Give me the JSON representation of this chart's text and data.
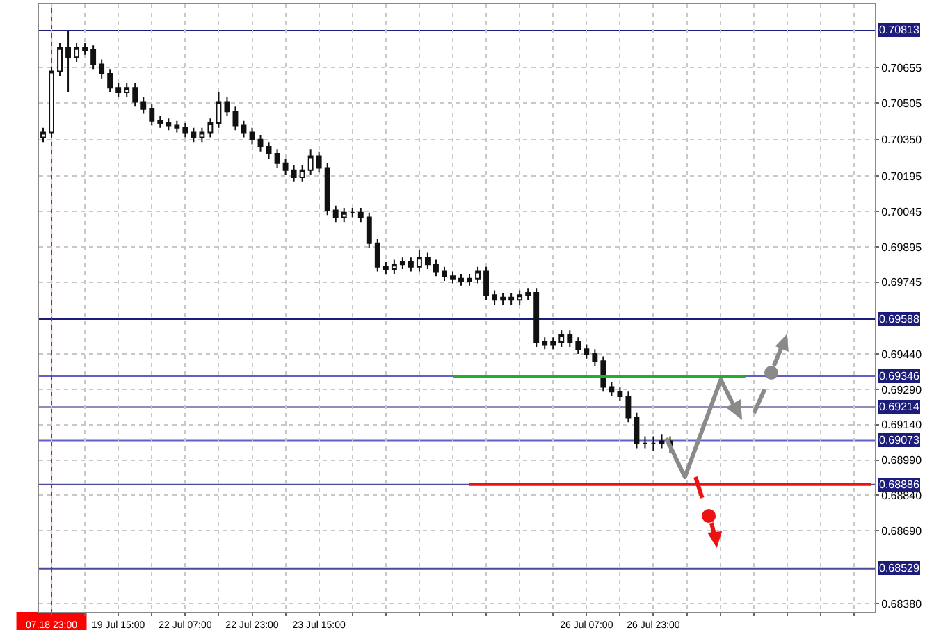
{
  "chart_data": {
    "type": "candlestick",
    "categories": [
      null,
      "07.18 23:00",
      null,
      null,
      null,
      null,
      null,
      null,
      null,
      "19 Jul 15:00",
      null,
      null,
      null,
      null,
      null,
      null,
      null,
      "22 Jul 07:00",
      null,
      null,
      null,
      null,
      null,
      null,
      null,
      "22 Jul 23:00",
      null,
      null,
      null,
      null,
      null,
      null,
      null,
      "23 Jul 15:00",
      null,
      null,
      null,
      null,
      null,
      null,
      null,
      null,
      null,
      null,
      null,
      null,
      null,
      null,
      null,
      null,
      null,
      null,
      null,
      null,
      null,
      null,
      null,
      null,
      null,
      null,
      null,
      null,
      null,
      null,
      null,
      "26 Jul 07:00",
      null,
      null,
      null,
      null,
      null,
      null,
      null,
      "26 Jul 23:00",
      null,
      null,
      null,
      null,
      null,
      null,
      null,
      null,
      null,
      null,
      null,
      null,
      null,
      null,
      null,
      null,
      null,
      null,
      null,
      null,
      null,
      null,
      null,
      null,
      null,
      null
    ],
    "ohlc": [
      [
        0.7036,
        0.704,
        0.7034,
        0.7038
      ],
      [
        0.7038,
        0.7066,
        0.7036,
        0.7064
      ],
      [
        0.7064,
        0.7076,
        0.7062,
        0.7074
      ],
      [
        0.7074,
        0.7081,
        0.7055,
        0.707
      ],
      [
        0.707,
        0.7076,
        0.7068,
        0.7074
      ],
      [
        0.7074,
        0.7076,
        0.7071,
        0.7073
      ],
      [
        0.7073,
        0.7075,
        0.7065,
        0.7067
      ],
      [
        0.7067,
        0.7069,
        0.7061,
        0.7063
      ],
      [
        0.7063,
        0.7065,
        0.7055,
        0.7057
      ],
      [
        0.7057,
        0.7059,
        0.7053,
        0.7055
      ],
      [
        0.7055,
        0.7059,
        0.7053,
        0.7057
      ],
      [
        0.7057,
        0.7059,
        0.7049,
        0.7051
      ],
      [
        0.7051,
        0.7053,
        0.7046,
        0.7048
      ],
      [
        0.7048,
        0.705,
        0.7041,
        0.7043
      ],
      [
        0.7043,
        0.7045,
        0.704,
        0.7042
      ],
      [
        0.7042,
        0.7044,
        0.7039,
        0.7041
      ],
      [
        0.7041,
        0.7043,
        0.7038,
        0.704
      ],
      [
        0.704,
        0.7042,
        0.7036,
        0.7038
      ],
      [
        0.7038,
        0.704,
        0.7034,
        0.7036
      ],
      [
        0.7036,
        0.704,
        0.7034,
        0.7038
      ],
      [
        0.7038,
        0.7044,
        0.7036,
        0.7042
      ],
      [
        0.7042,
        0.7055,
        0.704,
        0.7051
      ],
      [
        0.7051,
        0.7053,
        0.7045,
        0.7047
      ],
      [
        0.7047,
        0.7049,
        0.7039,
        0.7041
      ],
      [
        0.7041,
        0.7043,
        0.7036,
        0.7038
      ],
      [
        0.7038,
        0.704,
        0.7033,
        0.7035
      ],
      [
        0.7035,
        0.7037,
        0.703,
        0.7032
      ],
      [
        0.7032,
        0.7034,
        0.7027,
        0.7029
      ],
      [
        0.7029,
        0.7031,
        0.7023,
        0.7025
      ],
      [
        0.7025,
        0.7027,
        0.702,
        0.7022
      ],
      [
        0.7022,
        0.7024,
        0.7017,
        0.7019
      ],
      [
        0.7019,
        0.7024,
        0.7017,
        0.7022
      ],
      [
        0.7022,
        0.7031,
        0.702,
        0.7028
      ],
      [
        0.7028,
        0.703,
        0.7021,
        0.7023
      ],
      [
        0.7023,
        0.7025,
        0.7003,
        0.7005
      ],
      [
        0.7005,
        0.7007,
        0.7,
        0.7002
      ],
      [
        0.7002,
        0.7006,
        0.7,
        0.7004
      ],
      [
        0.7004,
        0.7006,
        0.7002,
        0.7004
      ],
      [
        0.7004,
        0.7006,
        0.7,
        0.7002
      ],
      [
        0.7002,
        0.7004,
        0.6989,
        0.6991
      ],
      [
        0.6991,
        0.6993,
        0.6979,
        0.6981
      ],
      [
        0.6981,
        0.6983,
        0.6978,
        0.698
      ],
      [
        0.698,
        0.6984,
        0.6978,
        0.6982
      ],
      [
        0.6982,
        0.6985,
        0.698,
        0.6983
      ],
      [
        0.6983,
        0.6985,
        0.6979,
        0.6981
      ],
      [
        0.6981,
        0.6988,
        0.6979,
        0.6985
      ],
      [
        0.6985,
        0.6987,
        0.698,
        0.6982
      ],
      [
        0.6982,
        0.6984,
        0.6977,
        0.6979
      ],
      [
        0.6979,
        0.6981,
        0.6975,
        0.6977
      ],
      [
        0.6977,
        0.6979,
        0.6974,
        0.6976
      ],
      [
        0.6976,
        0.6978,
        0.6973,
        0.6975
      ],
      [
        0.6975,
        0.6978,
        0.6973,
        0.6976
      ],
      [
        0.6976,
        0.6981,
        0.6974,
        0.6979
      ],
      [
        0.6979,
        0.6981,
        0.6967,
        0.6969
      ],
      [
        0.6969,
        0.6971,
        0.6965,
        0.6967
      ],
      [
        0.6967,
        0.697,
        0.6965,
        0.6968
      ],
      [
        0.6968,
        0.697,
        0.6965,
        0.6967
      ],
      [
        0.6967,
        0.6971,
        0.6965,
        0.6969
      ],
      [
        0.6969,
        0.6972,
        0.6967,
        0.697
      ],
      [
        0.697,
        0.6972,
        0.6947,
        0.6949
      ],
      [
        0.6949,
        0.6951,
        0.6946,
        0.6948
      ],
      [
        0.6948,
        0.6951,
        0.6946,
        0.6949
      ],
      [
        0.6949,
        0.6954,
        0.6947,
        0.6952
      ],
      [
        0.6952,
        0.6954,
        0.6947,
        0.6949
      ],
      [
        0.6949,
        0.6951,
        0.6944,
        0.6946
      ],
      [
        0.6946,
        0.6948,
        0.6942,
        0.6944
      ],
      [
        0.6944,
        0.6946,
        0.6939,
        0.6941
      ],
      [
        0.6941,
        0.6943,
        0.6928,
        0.693
      ],
      [
        0.693,
        0.6932,
        0.6926,
        0.6928
      ],
      [
        0.6928,
        0.693,
        0.6924,
        0.6926
      ],
      [
        0.6926,
        0.6928,
        0.6915,
        0.6917
      ],
      [
        0.6917,
        0.6919,
        0.6904,
        0.6906
      ],
      [
        0.6906,
        0.6909,
        0.6904,
        0.6906
      ],
      [
        0.6906,
        0.6909,
        0.6903,
        0.6906
      ],
      [
        0.6906,
        0.691,
        0.6904,
        0.6907
      ],
      [
        0.6907,
        0.6909,
        0.6902,
        0.6905
      ],
      null,
      null,
      null,
      null,
      null,
      null,
      null,
      null,
      null,
      null,
      null,
      null,
      null,
      null,
      null,
      null,
      null,
      null,
      null,
      null,
      null,
      null,
      null,
      null
    ],
    "series": [
      {
        "type": "line",
        "color": "#22b02a",
        "values": [
          null,
          null,
          null,
          null,
          null,
          null,
          null,
          null,
          null,
          null,
          null,
          null,
          null,
          null,
          null,
          null,
          null,
          null,
          null,
          null,
          null,
          null,
          null,
          null,
          null,
          null,
          null,
          null,
          null,
          null,
          null,
          null,
          null,
          null,
          null,
          null,
          null,
          null,
          null,
          null,
          null,
          null,
          null,
          null,
          null,
          null,
          null,
          null,
          null,
          0.69346,
          0.69346,
          0.69346,
          0.69346,
          0.69346,
          0.69346,
          0.69346,
          0.69346,
          0.69346,
          0.69346,
          0.69346,
          0.69346,
          0.69346,
          0.69346,
          0.69346,
          0.69346,
          0.69346,
          0.69346,
          0.69346,
          0.69346,
          0.69346,
          0.69346,
          0.69346,
          0.69346,
          0.69346,
          0.69346,
          0.69346,
          0.69346,
          0.69346,
          0.69346,
          0.69346,
          0.69346,
          0.69346,
          0.69346,
          0.69346,
          0.69346,
          null,
          null,
          null,
          null,
          null,
          null,
          null,
          null,
          null,
          null,
          null,
          null,
          null,
          null,
          null
        ]
      },
      {
        "type": "line",
        "color": "#ee1111",
        "values": [
          null,
          null,
          null,
          null,
          null,
          null,
          null,
          null,
          null,
          null,
          null,
          null,
          null,
          null,
          null,
          null,
          null,
          null,
          null,
          null,
          null,
          null,
          null,
          null,
          null,
          null,
          null,
          null,
          null,
          null,
          null,
          null,
          null,
          null,
          null,
          null,
          null,
          null,
          null,
          null,
          null,
          null,
          null,
          null,
          null,
          null,
          null,
          null,
          null,
          null,
          null,
          0.68886,
          0.68886,
          0.68886,
          0.68886,
          0.68886,
          0.68886,
          0.68886,
          0.68886,
          0.68886,
          0.68886,
          0.68886,
          0.68886,
          0.68886,
          0.68886,
          0.68886,
          0.68886,
          0.68886,
          0.68886,
          0.68886,
          0.68886,
          0.68886,
          0.68886,
          0.68886,
          0.68886,
          0.68886,
          0.68886,
          0.68886,
          0.68886,
          0.68886,
          0.68886,
          0.68886,
          0.68886,
          0.68886,
          0.68886,
          0.68886,
          0.68886,
          0.68886,
          0.68886,
          0.68886,
          0.68886,
          0.68886,
          0.68886,
          0.68886,
          0.68886,
          0.68886,
          0.68886,
          0.68886,
          0.68886,
          0.68886
        ]
      }
    ],
    "ylim": [
      0.68345,
      0.70925
    ],
    "yticks": [
      {
        "value": 0.70655,
        "label": "0.70655"
      },
      {
        "value": 0.70505,
        "label": "0.70505"
      },
      {
        "value": 0.7035,
        "label": "0.70350"
      },
      {
        "value": 0.70195,
        "label": "0.70195"
      },
      {
        "value": 0.70045,
        "label": "0.70045"
      },
      {
        "value": 0.69895,
        "label": "0.69895"
      },
      {
        "value": 0.69745,
        "label": "0.69745"
      },
      {
        "value": 0.6944,
        "label": "0.69440"
      },
      {
        "value": 0.6929,
        "label": "0.69290"
      },
      {
        "value": 0.6914,
        "label": "0.69140"
      },
      {
        "value": 0.6899,
        "label": "0.68990"
      },
      {
        "value": 0.6884,
        "label": "0.68840"
      },
      {
        "value": 0.6869,
        "label": "0.68690"
      },
      {
        "value": 0.6838,
        "label": "0.68380"
      }
    ],
    "ref_lines": [
      {
        "axis": "y",
        "value": 0.70813,
        "label": "0.70813",
        "color": "#1c1c7a"
      },
      {
        "axis": "y",
        "value": 0.69588,
        "label": "0.69588",
        "color": "#1c1c7a"
      },
      {
        "axis": "y",
        "value": 0.69346,
        "label": "0.69346",
        "color": "#6060c8"
      },
      {
        "axis": "y",
        "value": 0.69214,
        "label": "0.69214",
        "color": "#1c1c7a"
      },
      {
        "axis": "y",
        "value": 0.69073,
        "label": "0.69073",
        "color": "#6060c8"
      },
      {
        "axis": "y",
        "value": 0.68886,
        "label": "0.68886",
        "color": "#4a4aa0"
      },
      {
        "axis": "y",
        "value": 0.68529,
        "label": "0.68529",
        "color": "#4a4aa0"
      },
      {
        "axis": "x",
        "value": "07.18 23:00",
        "color": "#ff0000"
      }
    ],
    "grid": true
  }
}
